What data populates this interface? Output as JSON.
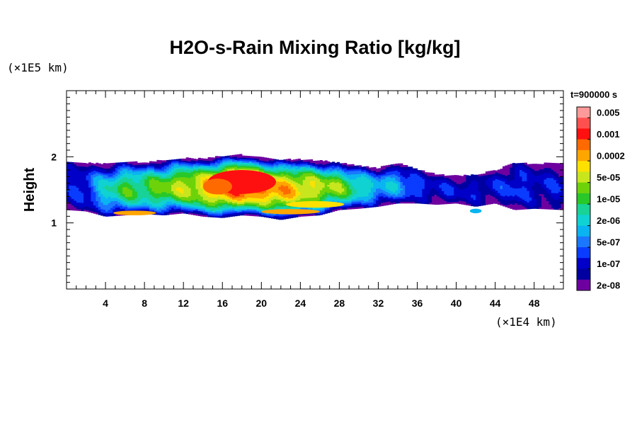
{
  "chart_data": {
    "type": "heatmap",
    "title": "H2O-s-Rain Mixing Ratio [kg/kg]",
    "xlabel": "",
    "ylabel": "Height",
    "x_unit": "(×1E4 km)",
    "y_unit": "(×1E5 km)",
    "time_label": "t=900000 s",
    "xlim": [
      0,
      51
    ],
    "ylim": [
      0,
      3
    ],
    "x_ticks": [
      4,
      8,
      12,
      16,
      20,
      24,
      28,
      32,
      36,
      40,
      44,
      48
    ],
    "y_ticks": [
      1,
      2
    ],
    "colorbar": {
      "levels": [
        "0.005",
        "0.001",
        "0.0002",
        "5e-05",
        "1e-05",
        "2e-06",
        "5e-07",
        "1e-07",
        "2e-08"
      ],
      "colors": [
        "#ff9a9a",
        "#ff5050",
        "#ff1010",
        "#ff6a00",
        "#ffa500",
        "#ffe100",
        "#c8e61e",
        "#6ed20a",
        "#28c828",
        "#18d296",
        "#10d2d2",
        "#0ab4f0",
        "#1a78ff",
        "#0a3cff",
        "#0000c8",
        "#0000a0",
        "#6e00a0"
      ]
    },
    "band": {
      "x_points": [
        0,
        2,
        4,
        6,
        8,
        10,
        12,
        14,
        16,
        18,
        20,
        22,
        24,
        26,
        28,
        30,
        32,
        34,
        36,
        38,
        40,
        42,
        44,
        46,
        48,
        51
      ],
      "top": [
        1.92,
        1.9,
        1.88,
        1.92,
        1.9,
        1.94,
        1.97,
        1.96,
        2.0,
        2.02,
        1.98,
        1.95,
        1.95,
        1.93,
        1.9,
        1.85,
        1.82,
        1.9,
        1.8,
        1.72,
        1.7,
        1.72,
        1.78,
        1.9,
        1.88,
        1.9
      ],
      "bottom": [
        1.2,
        1.18,
        1.1,
        1.12,
        1.14,
        1.12,
        1.15,
        1.1,
        1.08,
        1.12,
        1.1,
        1.05,
        1.1,
        1.12,
        1.2,
        1.22,
        1.25,
        1.3,
        1.3,
        1.28,
        1.3,
        1.25,
        1.3,
        1.2,
        1.22,
        1.2
      ],
      "peak": [
        2,
        3,
        6,
        8,
        8,
        9,
        10,
        11,
        13,
        14,
        13,
        12,
        11,
        10,
        9,
        7,
        5,
        5,
        3,
        2,
        2,
        2,
        2,
        3,
        2,
        2
      ]
    },
    "blobs": [
      {
        "x": 7,
        "y": 1.15,
        "rx": 2.2,
        "ry": 0.035,
        "level": 12
      },
      {
        "x": 23,
        "y": 1.17,
        "rx": 3.0,
        "ry": 0.04,
        "level": 12
      },
      {
        "x": 18,
        "y": 1.62,
        "rx": 3.5,
        "ry": 0.18,
        "level": 14
      },
      {
        "x": 15.5,
        "y": 1.55,
        "rx": 1.5,
        "ry": 0.12,
        "level": 13
      },
      {
        "x": 25.5,
        "y": 1.28,
        "rx": 3.0,
        "ry": 0.05,
        "level": 11
      },
      {
        "x": 42,
        "y": 1.18,
        "rx": 0.6,
        "ry": 0.035,
        "level": 5
      }
    ]
  }
}
